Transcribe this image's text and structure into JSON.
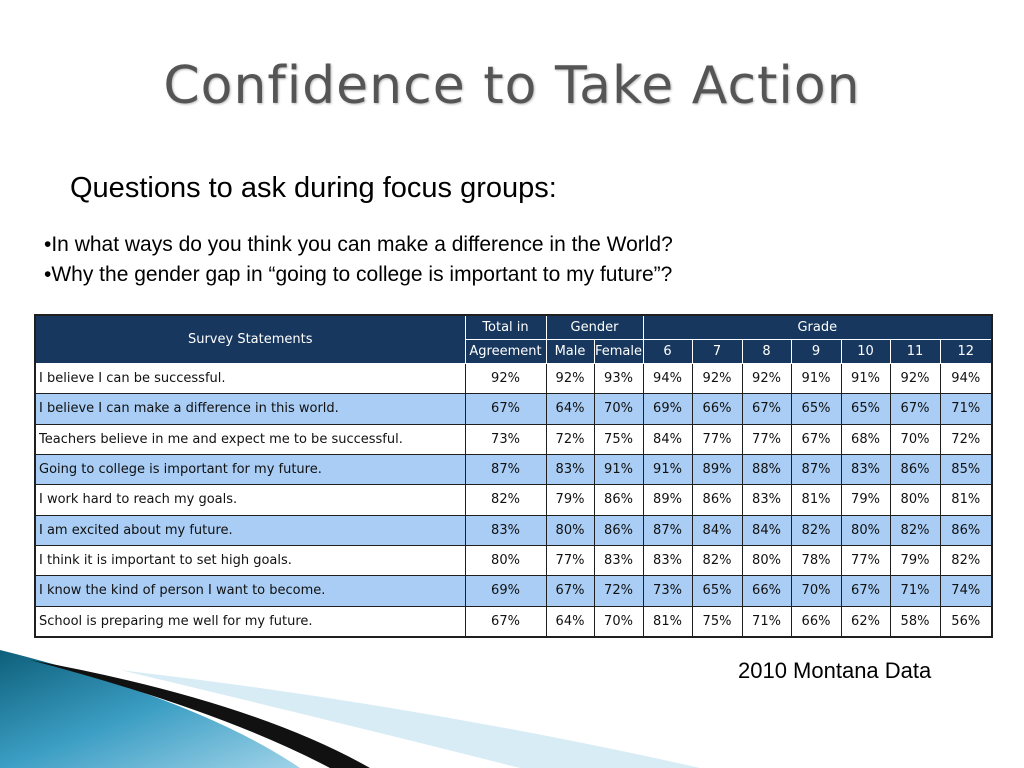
{
  "slide": {
    "title": "Confidence to Take Action",
    "subtitle": "Questions to ask during focus groups:",
    "bullets": [
      "•In what ways do you think you can make a difference in the World?",
      "•Why the gender gap in “going to college is important to my future”?"
    ],
    "source": "2010 Montana Data"
  },
  "table": {
    "header": {
      "statements": "Survey Statements",
      "total_line1": "Total in",
      "total_line2": "Agreement",
      "gender": "Gender",
      "grade": "Grade",
      "male": "Male",
      "female": "Female",
      "grades": [
        "6",
        "7",
        "8",
        "9",
        "10",
        "11",
        "12"
      ]
    },
    "rows": [
      {
        "statement": "I believe I can be successful.",
        "values": [
          "92%",
          "92%",
          "93%",
          "94%",
          "92%",
          "92%",
          "91%",
          "91%",
          "92%",
          "94%"
        ]
      },
      {
        "statement": "I believe I can make a difference in this world.",
        "values": [
          "67%",
          "64%",
          "70%",
          "69%",
          "66%",
          "67%",
          "65%",
          "65%",
          "67%",
          "71%"
        ]
      },
      {
        "statement": "Teachers believe in me and expect me to be successful.",
        "values": [
          "73%",
          "72%",
          "75%",
          "84%",
          "77%",
          "77%",
          "67%",
          "68%",
          "70%",
          "72%"
        ]
      },
      {
        "statement": "Going to college is important for my future.",
        "values": [
          "87%",
          "83%",
          "91%",
          "91%",
          "89%",
          "88%",
          "87%",
          "83%",
          "86%",
          "85%"
        ]
      },
      {
        "statement": "I work hard to reach my goals.",
        "values": [
          "82%",
          "79%",
          "86%",
          "89%",
          "86%",
          "83%",
          "81%",
          "79%",
          "80%",
          "81%"
        ]
      },
      {
        "statement": "I am excited about my future.",
        "values": [
          "83%",
          "80%",
          "86%",
          "87%",
          "84%",
          "84%",
          "82%",
          "80%",
          "82%",
          "86%"
        ]
      },
      {
        "statement": "I think it is important to set high goals.",
        "values": [
          "80%",
          "77%",
          "83%",
          "83%",
          "82%",
          "80%",
          "78%",
          "77%",
          "79%",
          "82%"
        ]
      },
      {
        "statement": "I know the kind of person I want to become.",
        "values": [
          "69%",
          "67%",
          "72%",
          "73%",
          "65%",
          "66%",
          "70%",
          "67%",
          "71%",
          "74%"
        ]
      },
      {
        "statement": "School is preparing me well for my future.",
        "values": [
          "67%",
          "64%",
          "70%",
          "81%",
          "75%",
          "71%",
          "66%",
          "62%",
          "58%",
          "56%"
        ]
      }
    ]
  },
  "colors": {
    "header_bg": "#17375e",
    "shaded_row": "#a9cdf4",
    "title": "#555555"
  }
}
